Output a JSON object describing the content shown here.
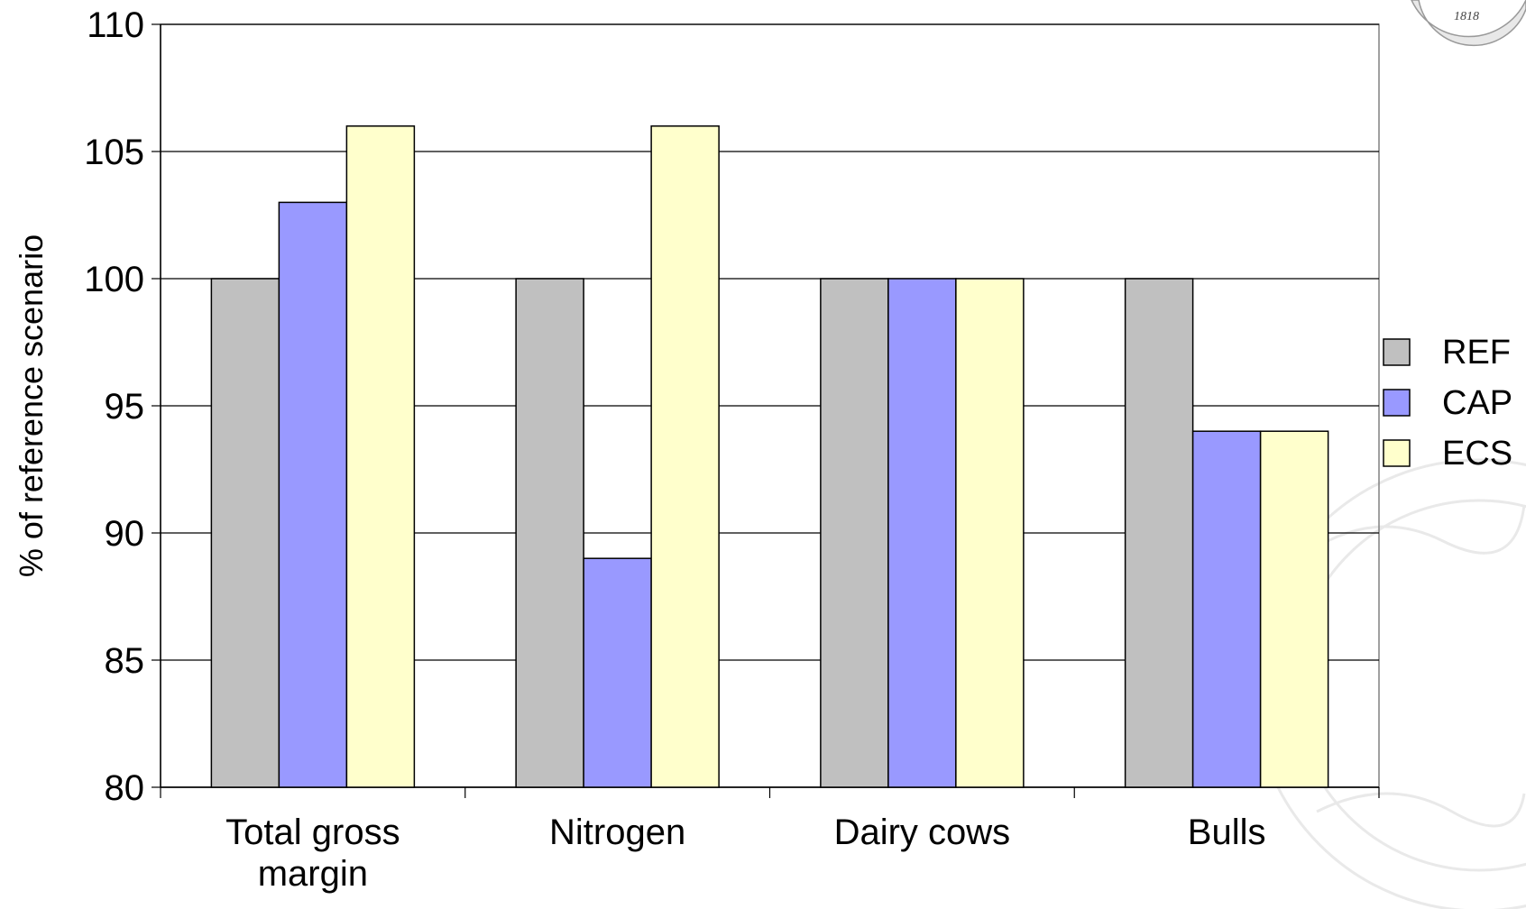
{
  "chart_data": {
    "type": "bar",
    "categories": [
      [
        "Total gross",
        "margin"
      ],
      [
        "Nitrogen"
      ],
      [
        "Dairy cows"
      ],
      [
        "Bulls"
      ]
    ],
    "series": [
      {
        "name": "REF",
        "color": "#c0c0c0",
        "values": [
          100,
          100,
          100,
          100
        ]
      },
      {
        "name": "CAP",
        "color": "#9999ff",
        "values": [
          103,
          89,
          100,
          94
        ]
      },
      {
        "name": "ECS",
        "color": "#ffffcc",
        "values": [
          106,
          106,
          100,
          94
        ]
      }
    ],
    "title": "",
    "xlabel": "",
    "ylabel": "% of reference scenario",
    "ylim": [
      80,
      110
    ],
    "yticks": [
      80,
      85,
      90,
      95,
      100,
      105,
      110
    ],
    "grid": true,
    "legend_position": "right"
  },
  "seal": {
    "year": "1818"
  }
}
